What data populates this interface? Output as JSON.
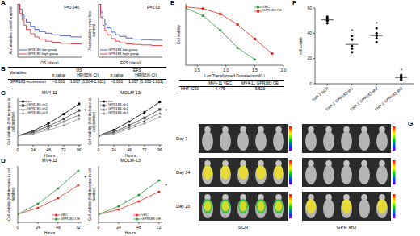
{
  "chart_data": [
    {
      "panel_label": "A",
      "type": "step",
      "x_label": "OS (days)",
      "y_label": "Accumulative overall survival",
      "annotation": "P=0.046",
      "xlim": [
        0,
        3000
      ],
      "ylim": [
        0,
        1
      ],
      "tick_labels": false,
      "legend": "lower left",
      "x": [
        0,
        100,
        200,
        300,
        400,
        600,
        800,
        1000,
        1300,
        1600,
        2000,
        2500,
        3000
      ],
      "series": [
        {
          "name": "GPR183 low group",
          "color": "#1f3fbf",
          "values": [
            1,
            0.9,
            0.8,
            0.72,
            0.66,
            0.58,
            0.52,
            0.48,
            0.45,
            0.42,
            0.4,
            0.38,
            0.38
          ]
        },
        {
          "name": "GPR183 high group",
          "color": "#d62020",
          "values": [
            1,
            0.82,
            0.7,
            0.6,
            0.52,
            0.44,
            0.38,
            0.34,
            0.3,
            0.28,
            0.26,
            0.25,
            0.25
          ]
        }
      ]
    },
    {
      "type": "step",
      "x_label": "EFS (days)",
      "y_label": "Accumulative event-free survival",
      "annotation": "P=0.03",
      "xlim": [
        0,
        3000
      ],
      "ylim": [
        0,
        1
      ],
      "tick_labels": false,
      "legend": "lower left",
      "x": [
        0,
        100,
        200,
        300,
        400,
        600,
        800,
        1000,
        1300,
        1600,
        2000,
        2500,
        3000
      ],
      "series": [
        {
          "name": "GPR183 low group",
          "color": "#1f3fbf",
          "values": [
            1,
            0.85,
            0.72,
            0.62,
            0.55,
            0.47,
            0.42,
            0.39,
            0.36,
            0.34,
            0.33,
            0.32,
            0.32
          ]
        },
        {
          "name": "GPR183 high group",
          "color": "#d62020",
          "values": [
            1,
            0.75,
            0.6,
            0.5,
            0.42,
            0.35,
            0.3,
            0.27,
            0.25,
            0.24,
            0.23,
            0.22,
            0.22
          ]
        }
      ]
    },
    {
      "panel_label": "C",
      "type": "line",
      "title": "MV4-11",
      "x_label": "Hours",
      "y_label": "Cell viability (fold increase in cell number)",
      "annotation": "*",
      "x": [
        0,
        24,
        48,
        72,
        96
      ],
      "xlim": [
        0,
        100
      ],
      "xticks": [
        0,
        24,
        48,
        72,
        96
      ],
      "ylim": [
        0,
        5
      ],
      "tick_labels": "x",
      "legend": "upper left",
      "series": [
        {
          "name": "scr",
          "color": "#000000",
          "marker": "circle",
          "values": [
            1,
            1.5,
            2.3,
            3.3,
            4.4
          ]
        },
        {
          "name": "GPR183-sh1",
          "color": "#444444",
          "marker": "square",
          "values": [
            1,
            1.4,
            2.0,
            2.8,
            3.7
          ]
        },
        {
          "name": "GPR183-sh2",
          "color": "#6e6e6e",
          "marker": "triangle",
          "values": [
            1,
            1.3,
            1.8,
            2.5,
            3.2
          ]
        },
        {
          "name": "GPR183-sh3",
          "color": "#999999",
          "marker": "diamond",
          "values": [
            1,
            1.2,
            1.6,
            2.1,
            2.8
          ]
        }
      ]
    },
    {
      "type": "line",
      "title": "MOLM-13",
      "x_label": "Hours",
      "y_label": "Cell viability (fold increase in cell number)",
      "annotation": "*",
      "x": [
        0,
        24,
        48,
        72,
        96
      ],
      "xlim": [
        0,
        100
      ],
      "xticks": [
        0,
        24,
        48,
        72,
        96
      ],
      "ylim": [
        0,
        5
      ],
      "tick_labels": "x",
      "legend": "upper left",
      "series": [
        {
          "name": "scr",
          "color": "#000000",
          "marker": "circle",
          "values": [
            1,
            1.6,
            2.5,
            3.5,
            4.6
          ]
        },
        {
          "name": "GPR183-sh1",
          "color": "#444444",
          "marker": "square",
          "values": [
            1,
            1.4,
            2.1,
            2.9,
            3.8
          ]
        },
        {
          "name": "GPR183-sh2",
          "color": "#6e6e6e",
          "marker": "triangle",
          "values": [
            1,
            1.3,
            1.9,
            2.6,
            3.4
          ]
        },
        {
          "name": "GPR183-sh3",
          "color": "#999999",
          "marker": "diamond",
          "values": [
            1,
            1.2,
            1.7,
            2.3,
            3.0
          ]
        }
      ]
    },
    {
      "panel_label": "D",
      "type": "line",
      "title": "MV4-11",
      "x_label": "Hours",
      "y_label": "Cell viability (fold increase in cell number)",
      "annotation": "*",
      "x": [
        0,
        24,
        48,
        72
      ],
      "xlim": [
        0,
        76
      ],
      "xticks": [
        0,
        24,
        48,
        72
      ],
      "ylim": [
        0,
        7
      ],
      "tick_labels": "x",
      "legend": "lower right",
      "series": [
        {
          "name": "VEC",
          "color": "#e03020",
          "marker": "circle",
          "values": [
            1,
            1.8,
            3.0,
            4.6
          ]
        },
        {
          "name": "GPR183 OE",
          "color": "#2a9a3a",
          "marker": "circle",
          "values": [
            1,
            2.3,
            4.2,
            6.4
          ]
        }
      ]
    },
    {
      "type": "line",
      "title": "MOLM-13",
      "x_label": "Hours",
      "y_label": "Cell viability (fold increase in cell number)",
      "annotation": "*",
      "x": [
        0,
        24,
        48,
        72
      ],
      "xlim": [
        0,
        76
      ],
      "xticks": [
        0,
        24,
        48,
        72
      ],
      "ylim": [
        0,
        7
      ],
      "tick_labels": "x",
      "legend": "lower right",
      "series": [
        {
          "name": "VEC",
          "color": "#e03020",
          "marker": "circle",
          "values": [
            1,
            1.6,
            2.6,
            3.8
          ]
        },
        {
          "name": "GPR183 OE",
          "color": "#2a9a3a",
          "marker": "circle",
          "values": [
            1,
            2.0,
            3.4,
            5.2
          ]
        }
      ]
    },
    {
      "panel_label": "E",
      "type": "line",
      "x_label": "Log Transformed Dosage(nmol/L)",
      "y_label": "Cell viability",
      "xlim": [
        0.3,
        2.0
      ],
      "xticks": [
        0.5,
        {
          "value": 1,
          "label": "1.0"
        },
        1.5,
        {
          "value": 2,
          "label": "2.0"
        }
      ],
      "ylim": [
        0,
        105
      ],
      "tick_labels": "x",
      "legend": "upper right",
      "series": [
        {
          "name": "VEC",
          "color": "#2a9a3a",
          "marker": "circle",
          "x": [
            0.3,
            0.6,
            0.9,
            1.2,
            1.5
          ],
          "values": [
            98,
            85,
            60,
            30,
            10
          ]
        },
        {
          "name": "GPR183 OE",
          "color": "#e03020",
          "marker": "square",
          "x": [
            0.3,
            0.6,
            0.9,
            1.2,
            1.5,
            1.8
          ],
          "values": [
            100,
            97,
            88,
            70,
            45,
            20
          ]
        }
      ]
    },
    {
      "panel_label": "F",
      "type": "scatter",
      "y_label": "cell counts",
      "categories": [
        "THP-1 SCR",
        "THP-1 GPR183-sh1",
        "THP-1 GPR183-sh2",
        "THP-1 GPR183-sh3"
      ],
      "values": [
        [
          48,
          50,
          52,
          53,
          50
        ],
        [
          25,
          30,
          35,
          38,
          28
        ],
        [
          33,
          36,
          40,
          44,
          38
        ],
        [
          3,
          5,
          7,
          4,
          6
        ]
      ],
      "annotations": [
        null,
        "*",
        "*",
        "*"
      ],
      "ylim": [
        0,
        60
      ],
      "yticks": [
        0,
        20,
        40,
        60
      ],
      "color": "#000000"
    }
  ],
  "table_B": {
    "panel_label": "B",
    "header": [
      "Variables",
      "OS",
      "EFS"
    ],
    "subheader": [
      "p value",
      "HR(95% CI)",
      "p value",
      "HR(95% CI)"
    ],
    "rows": [
      {
        "label": "GPR183 expression",
        "cells": [
          "<0.001",
          "1.007 (1.004-1.011)",
          "<0.001",
          "1.007 (1.003-1.011)"
        ]
      }
    ]
  },
  "table_E": {
    "columns": [
      "MV4-11 VEC",
      "MV4-11 GPR183 OE"
    ],
    "row_label": "HHT IC50",
    "values": [
      "4.475",
      "9.520"
    ]
  },
  "panel_G": {
    "panel_label": "G",
    "rows": [
      "Day 7",
      "Day 14",
      "Day 20"
    ],
    "groups": [
      "SCR",
      "GPR sh3"
    ],
    "mice_per_group": 5
  }
}
